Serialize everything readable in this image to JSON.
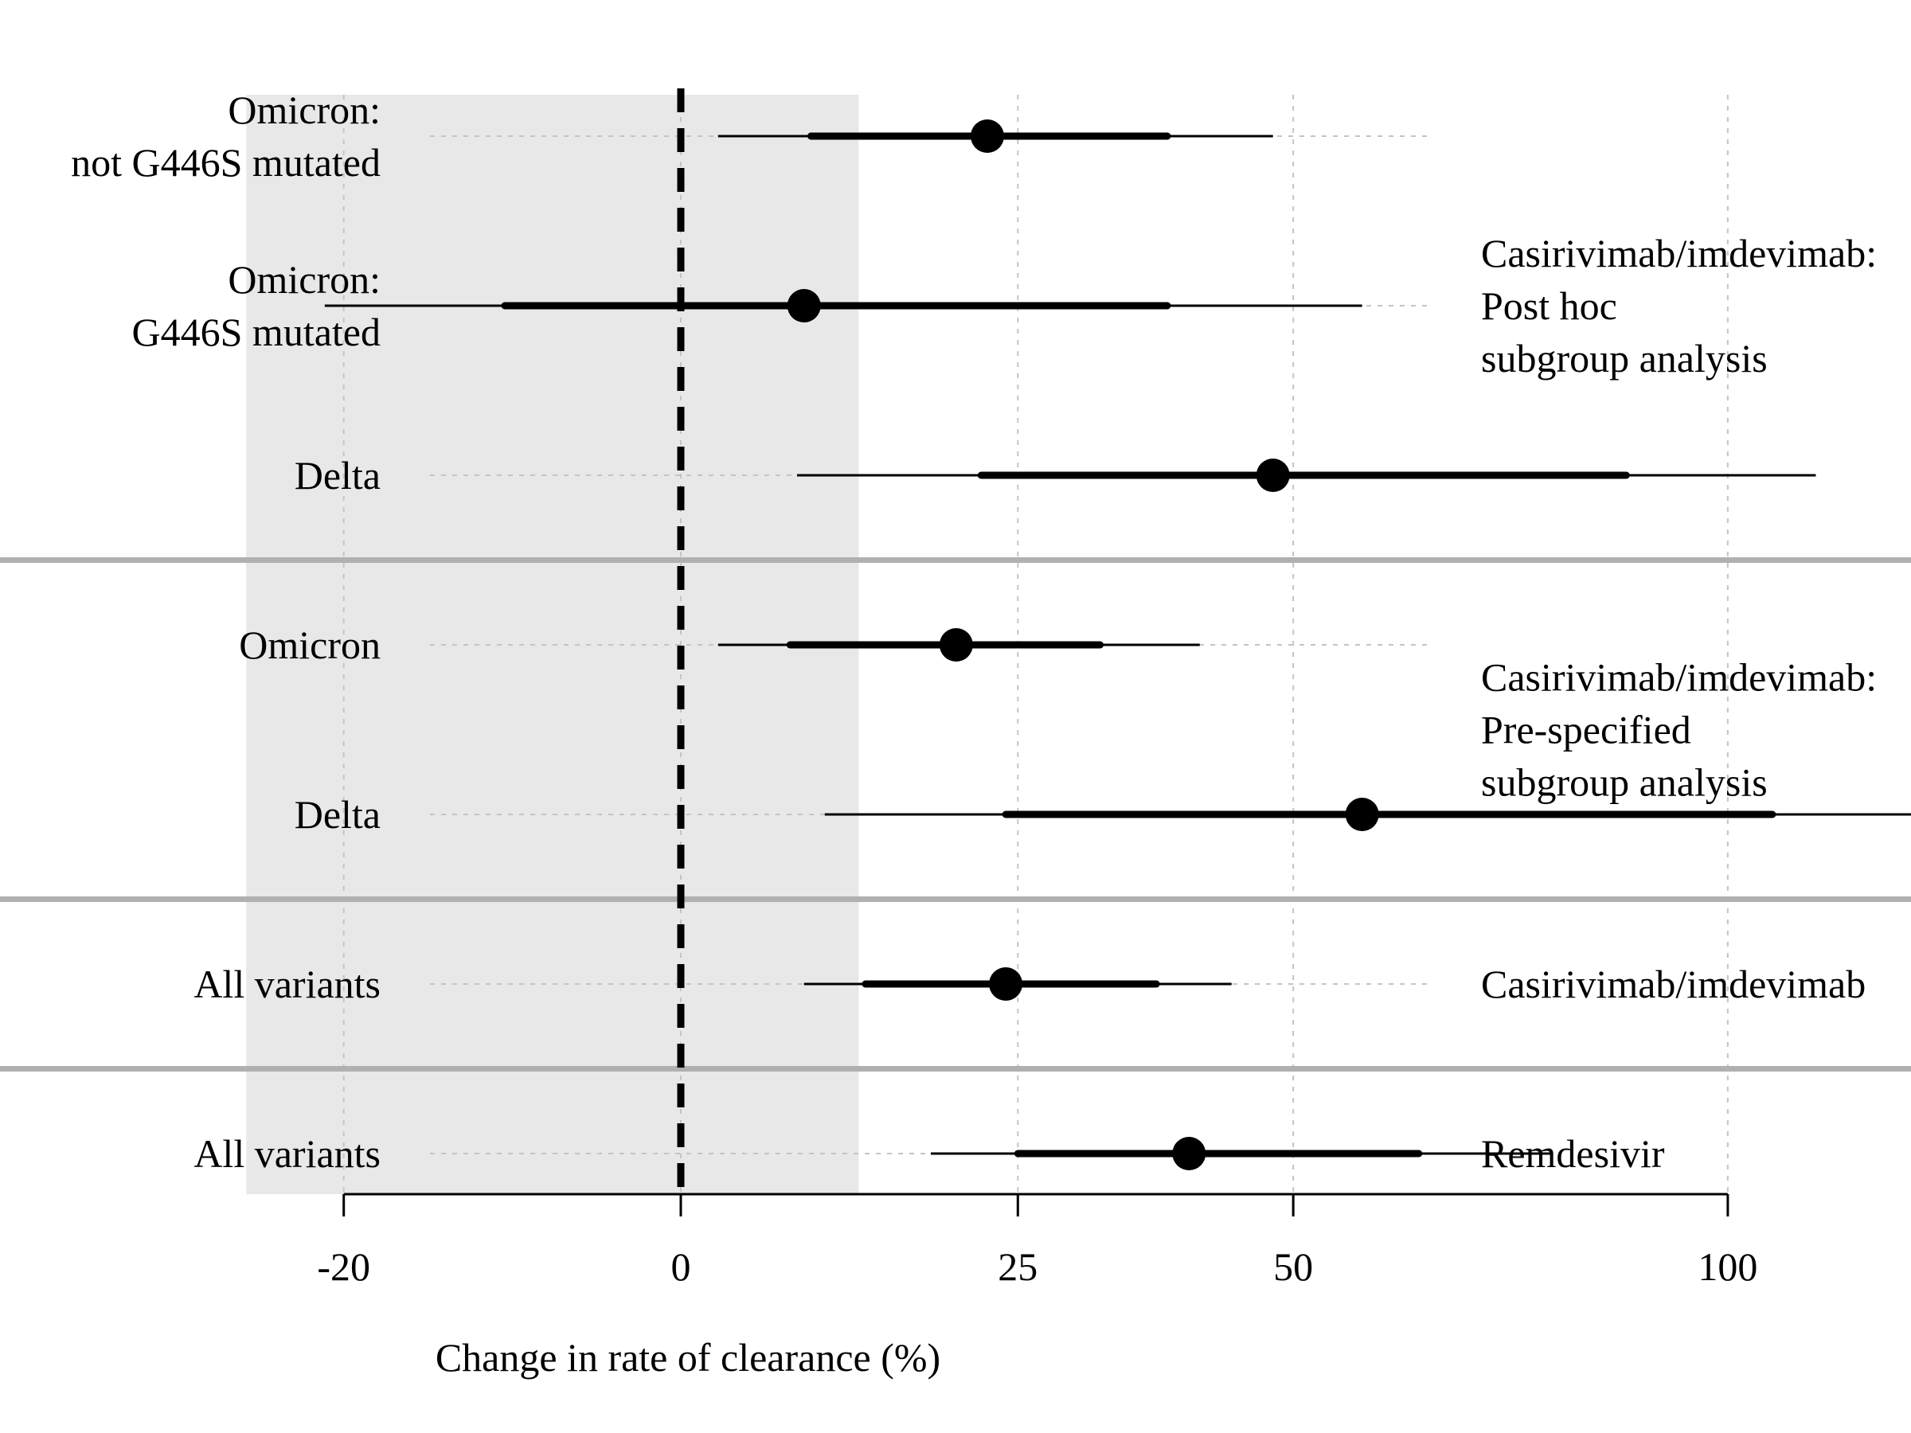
{
  "chart_data": {
    "type": "forest",
    "xlabel": "Change in rate of clearance (%)",
    "x_ticks": [
      {
        "value": -20,
        "label": "-20"
      },
      {
        "value": 0,
        "label": "0"
      },
      {
        "value": 25,
        "label": "25"
      },
      {
        "value": 50,
        "label": "50"
      },
      {
        "value": 100,
        "label": "100"
      }
    ],
    "reference_value": 0,
    "shaded_region": [
      -25,
      12.5
    ],
    "rows": [
      {
        "label": [
          "Omicron:",
          "not G446S mutated"
        ],
        "estimate": 22.5,
        "ci80": [
          9,
          38
        ],
        "ci95": [
          2.5,
          48
        ]
      },
      {
        "label": [
          "Omicron:",
          "G446S mutated"
        ],
        "estimate": 8.5,
        "ci80": [
          -11,
          38
        ],
        "ci95": [
          -21,
          57
        ]
      },
      {
        "label": [
          "Delta"
        ],
        "estimate": 48,
        "ci80": [
          22,
          87
        ],
        "ci95": [
          8,
          112
        ]
      },
      {
        "label": [
          "Omicron"
        ],
        "estimate": 20,
        "ci80": [
          7.5,
          32
        ],
        "ci95": [
          2.5,
          41
        ]
      },
      {
        "label": [
          "Delta"
        ],
        "estimate": 57,
        "ci80": [
          24,
          106
        ],
        "ci95": [
          10,
          128
        ]
      },
      {
        "label": [
          "All variants"
        ],
        "estimate": 24,
        "ci80": [
          13,
          37
        ],
        "ci95": [
          8.5,
          44
        ]
      },
      {
        "label": [
          "All variants"
        ],
        "estimate": 40,
        "ci80": [
          25,
          63
        ],
        "ci95": [
          18,
          78
        ]
      }
    ],
    "groups": [
      {
        "label": [
          "Casirivimab/imdevimab:",
          "Post hoc",
          "subgroup analysis"
        ],
        "rows": [
          0,
          1,
          2
        ]
      },
      {
        "label": [
          "Casirivimab/imdevimab:",
          "Pre-specified",
          "subgroup analysis"
        ],
        "rows": [
          3,
          4
        ]
      },
      {
        "label": [
          "Casirivimab/imdevimab"
        ],
        "rows": [
          5
        ]
      },
      {
        "label": [
          "Remdesivir"
        ],
        "rows": [
          6
        ]
      }
    ],
    "grid": true,
    "x_scale": "log(1 + x/100)"
  }
}
